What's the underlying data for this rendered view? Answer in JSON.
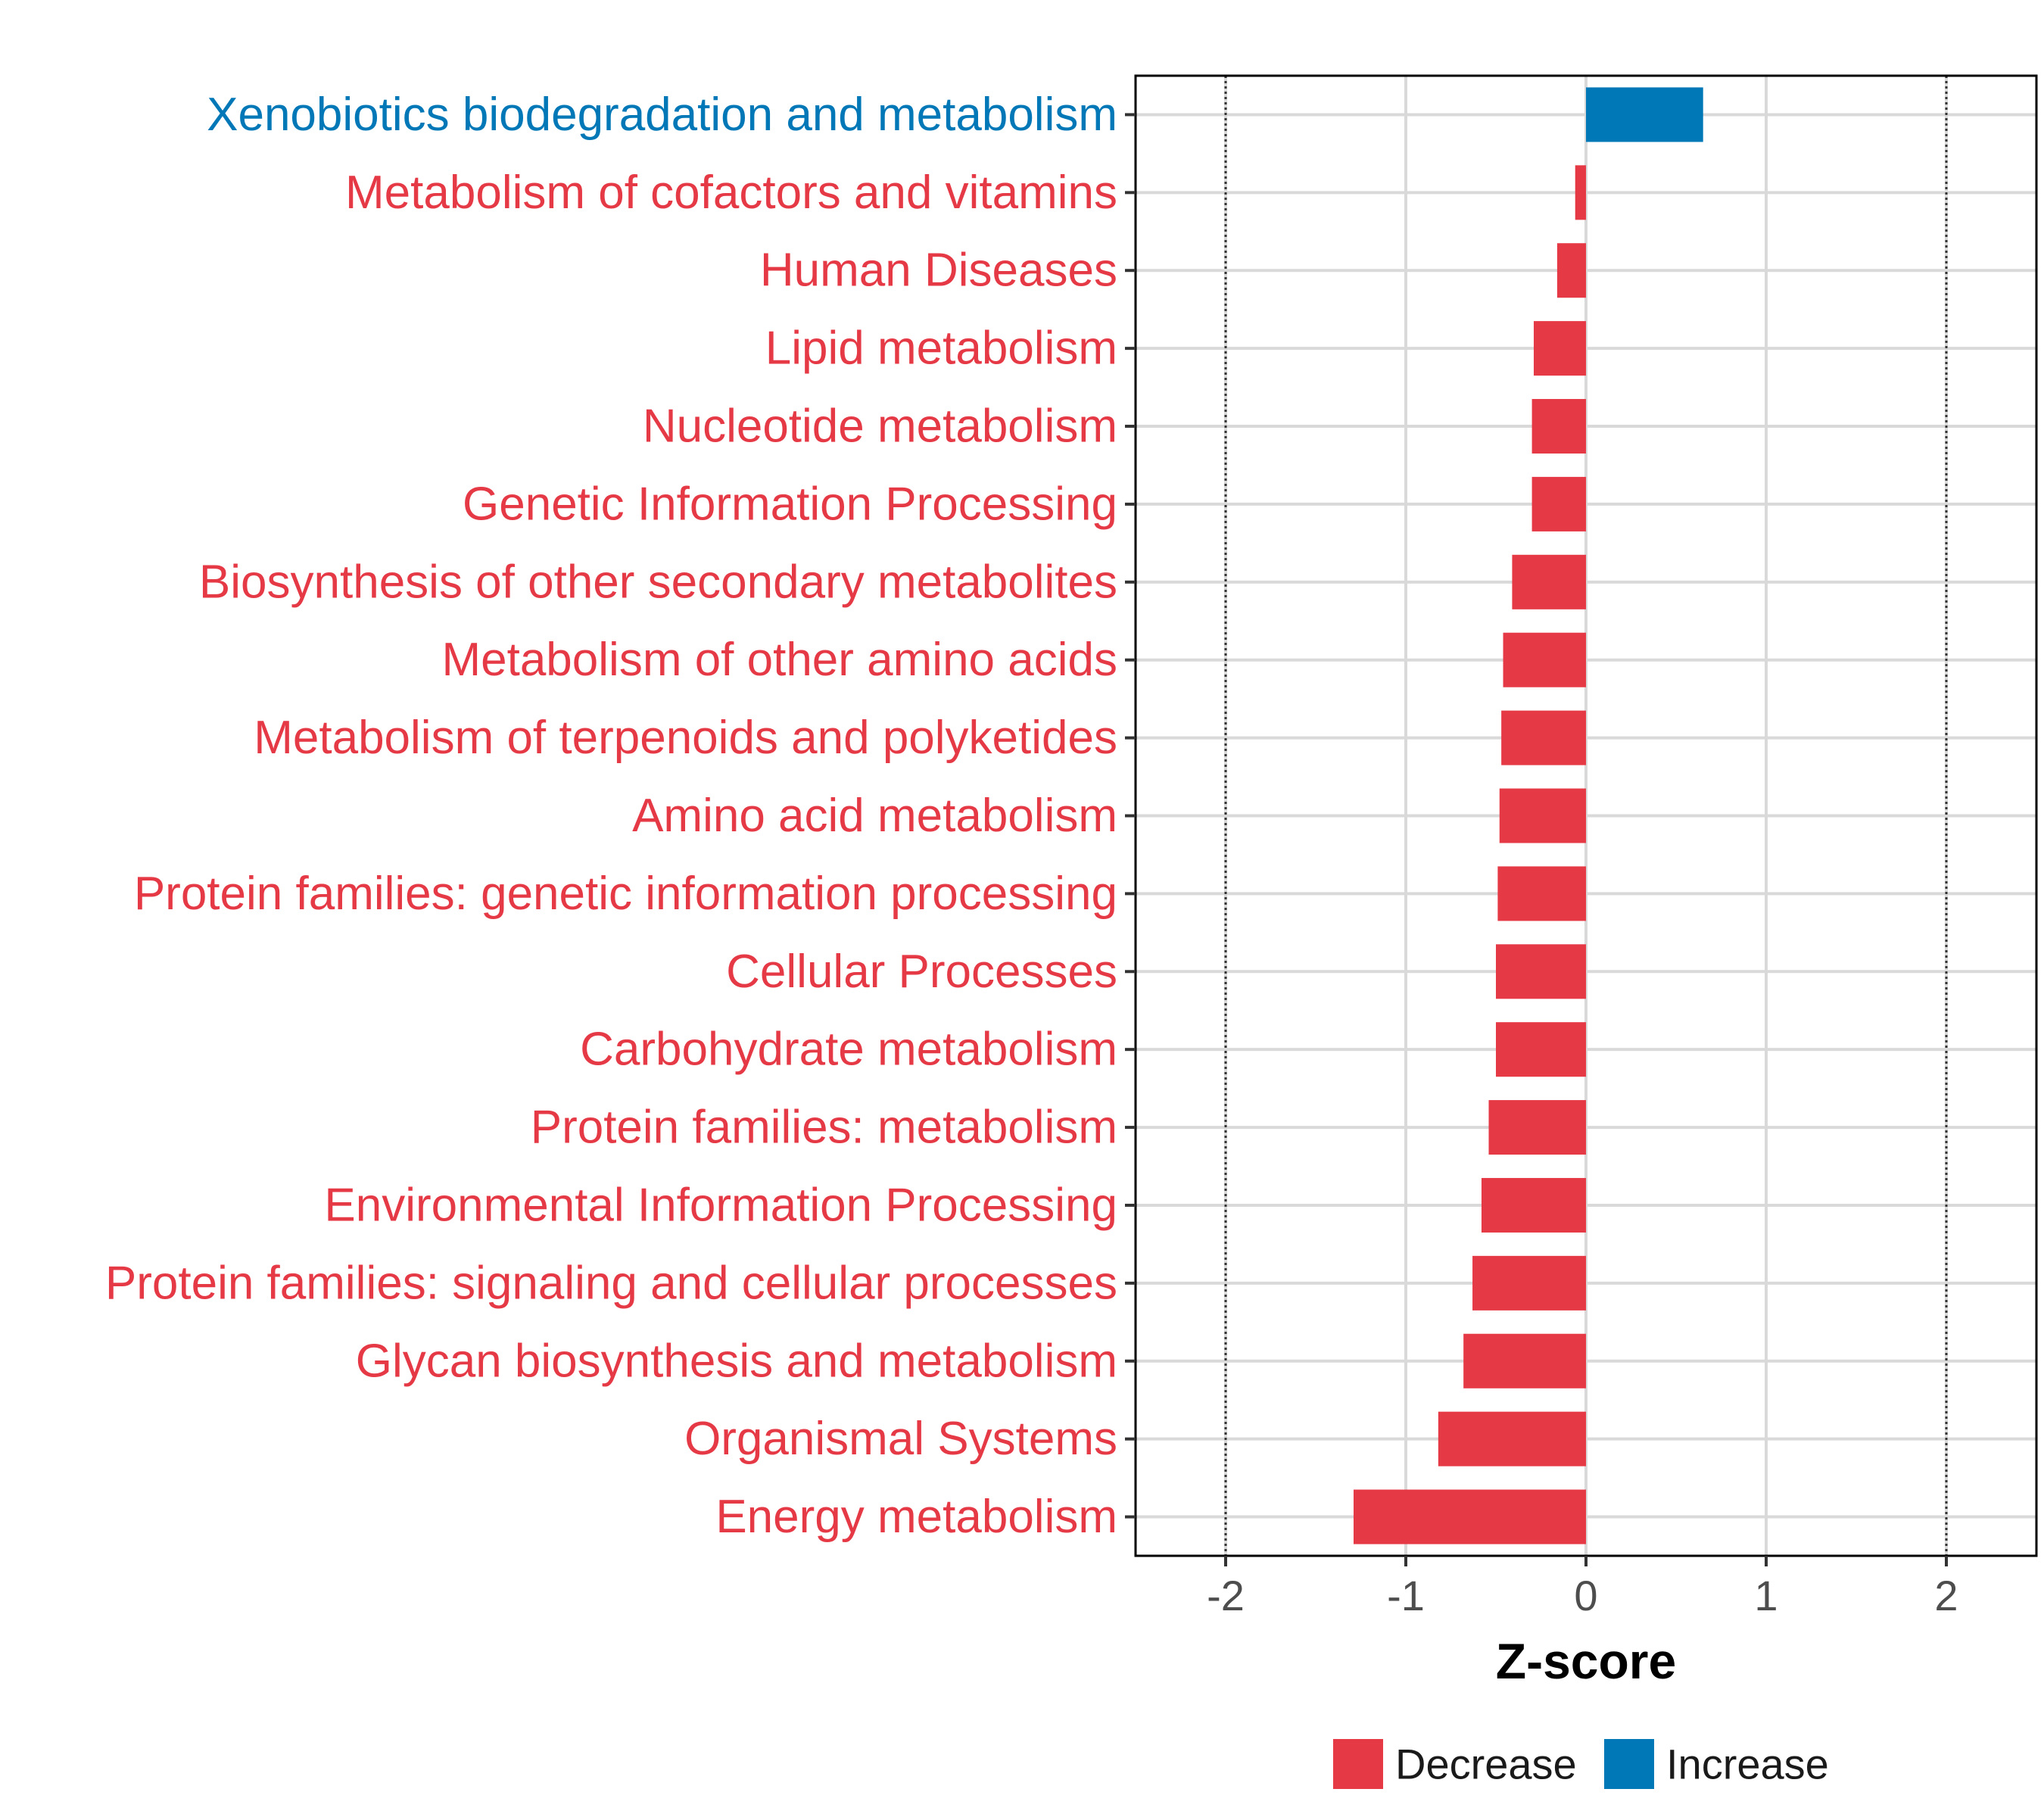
{
  "chart_data": {
    "type": "bar",
    "orientation": "horizontal",
    "title": "",
    "xlabel": "Z-score",
    "ylabel": "",
    "xlim": [
      -2.5,
      2.5
    ],
    "xticks": [
      -2,
      -1,
      0,
      1,
      2
    ],
    "reference_lines": [
      -2,
      2
    ],
    "grid": true,
    "colors": {
      "Decrease": "#e63946",
      "Increase": "#0077b6"
    },
    "categories": [
      "Xenobiotics biodegradation and metabolism",
      "Metabolism of cofactors and vitamins",
      "Human Diseases",
      "Lipid metabolism",
      "Nucleotide metabolism",
      "Genetic Information Processing",
      "Biosynthesis of other secondary metabolites",
      "Metabolism of other amino acids",
      "Metabolism of terpenoids and polyketides",
      "Amino acid metabolism",
      "Protein families: genetic information processing",
      "Cellular Processes",
      "Carbohydrate metabolism",
      "Protein families: metabolism",
      "Environmental Information Processing",
      "Protein families: signaling and cellular processes",
      "Glycan biosynthesis and metabolism",
      "Organismal Systems",
      "Energy metabolism"
    ],
    "values": [
      0.65,
      -0.06,
      -0.16,
      -0.29,
      -0.3,
      -0.3,
      -0.41,
      -0.46,
      -0.47,
      -0.48,
      -0.49,
      -0.5,
      -0.5,
      -0.54,
      -0.58,
      -0.63,
      -0.68,
      -0.82,
      -1.29
    ],
    "groups": [
      "Increase",
      "Decrease",
      "Decrease",
      "Decrease",
      "Decrease",
      "Decrease",
      "Decrease",
      "Decrease",
      "Decrease",
      "Decrease",
      "Decrease",
      "Decrease",
      "Decrease",
      "Decrease",
      "Decrease",
      "Decrease",
      "Decrease",
      "Decrease",
      "Decrease"
    ],
    "legend": {
      "position": "bottom",
      "entries": [
        "Decrease",
        "Increase"
      ]
    }
  }
}
